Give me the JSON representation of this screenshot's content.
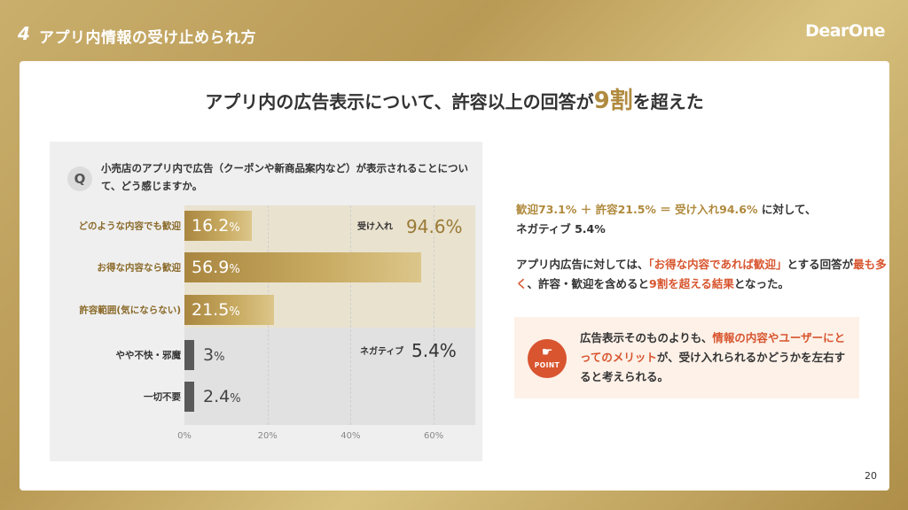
{
  "header": {
    "section_number": "4",
    "title": "アプリ内情報の受け止められ方",
    "logo": "DearOne"
  },
  "main_title": {
    "prefix": "アプリ内の広告表示について、許容以上の回答が",
    "highlight": "9割",
    "suffix": "を超えた"
  },
  "question": {
    "badge": "Q",
    "text": "小売店のアプリ内で広告（クーポンや新商品案内など）が表示されることについて、どう感じますか。"
  },
  "chart_data": {
    "type": "bar",
    "orientation": "horizontal",
    "categories": [
      "どのような内容でも歓迎",
      "お得な内容なら歓迎",
      "許容範囲(気にならない)",
      "やや不快・邪魔",
      "一切不要"
    ],
    "values": [
      16.2,
      56.9,
      21.5,
      3,
      2.4
    ],
    "value_labels": [
      "16.2",
      "56.9",
      "21.5",
      "3",
      "2.4"
    ],
    "unit": "%",
    "groups": [
      "positive",
      "positive",
      "positive",
      "negative",
      "negative"
    ],
    "xlim": [
      0,
      70
    ],
    "x_ticks": [
      "0%",
      "20%",
      "40%",
      "60%"
    ],
    "tick_values": [
      0,
      20,
      40,
      60
    ],
    "grid": true,
    "summaries": [
      {
        "label": "受け入れ",
        "value": "94.6",
        "unit": "%"
      },
      {
        "label": "ネガティブ",
        "value": "5.4",
        "unit": "%"
      }
    ],
    "colors": {
      "positive": "#b08a3e",
      "negative": "#5a5a5a"
    }
  },
  "right_panel": {
    "line1_gold": "歓迎73.1% ＋ 許容21.5% ＝ 受け入れ94.6%",
    "line1_rest": "に対して、",
    "line2": "ネガティブ 5.4%",
    "p2_a": "アプリ内広告に対しては、",
    "p2_b": "「お得な内容であれば歓迎」",
    "p2_c": "とする回答が",
    "p2_d": "最も多く",
    "p2_e": "、許容・歓迎を含めると",
    "p2_f": "9割",
    "p2_g": "を超える結果",
    "p2_h": "となった。"
  },
  "point": {
    "icon_label": "POINT",
    "icon": "pointing-hand-icon",
    "t1": "広告表示そのものよりも、",
    "t2": "情報の内容やユーザーにとってのメリット",
    "t3": "が、受け入れられるかどうかを左右すると考えられる。"
  },
  "page_number": "20",
  "colors": {
    "gold": "#b08a3e",
    "accent_orange": "#d8552f"
  }
}
